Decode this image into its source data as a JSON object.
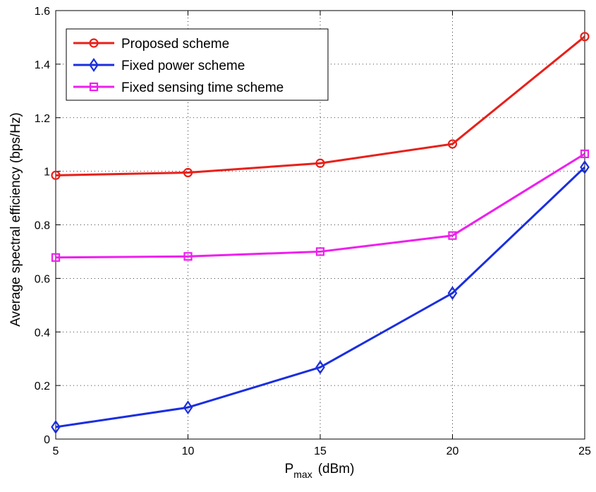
{
  "chart_data": {
    "type": "line",
    "title": "",
    "xlabel_main": "P",
    "xlabel_sub": "max",
    "xlabel_unit": "(dBm)",
    "ylabel": "Average spectral efficiency (bps/Hz)",
    "xlim": [
      5,
      25
    ],
    "ylim": [
      0,
      1.6
    ],
    "x_ticks": [
      "5",
      "10",
      "15",
      "20",
      "25"
    ],
    "y_ticks": [
      "0",
      "0.2",
      "0.4",
      "0.6",
      "0.8",
      "1",
      "1.2",
      "1.4",
      "1.6"
    ],
    "grid": true,
    "legend_position": "top-left",
    "x": [
      5,
      10,
      15,
      20,
      25
    ],
    "series": [
      {
        "name": "Proposed scheme",
        "color": "#e8201a",
        "marker": "circle",
        "values": [
          0.985,
          0.995,
          1.03,
          1.102,
          1.503
        ]
      },
      {
        "name": "Fixed power scheme",
        "color": "#1a2ee0",
        "marker": "diamond",
        "values": [
          0.045,
          0.118,
          0.268,
          0.545,
          1.015
        ]
      },
      {
        "name": "Fixed sensing time scheme",
        "color": "#ee1fee",
        "marker": "square",
        "values": [
          0.678,
          0.682,
          0.7,
          0.76,
          1.065
        ]
      }
    ]
  }
}
